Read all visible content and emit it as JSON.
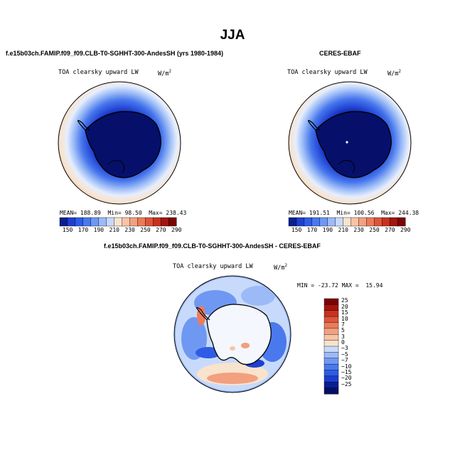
{
  "page": {
    "title": "JJA"
  },
  "panels": {
    "model": {
      "title": "f.e15b03ch.FAMIP.f09_f09.CLB-T0-SGHHT-300-AndesSH (yrs 1980-1984)",
      "variable": "TOA clearsky upward LW",
      "units": "W/m",
      "units_exponent": "2",
      "mean_label": "MEAN=",
      "mean": "188.89",
      "min_label": "Min=",
      "min": "98.50",
      "max_label": "Max=",
      "max": "238.43"
    },
    "obs": {
      "title": "CERES-EBAF",
      "variable": "TOA clearsky upward LW",
      "units": "W/m",
      "units_exponent": "2",
      "mean_label": "MEAN=",
      "mean": "191.51",
      "min_label": "Min=",
      "min": "100.56",
      "max_label": "Max=",
      "max": "244.38"
    },
    "diff": {
      "title": "f.e15b03ch.FAMIP.f09_f09.CLB-T0-SGHHT-300-AndesSH - CERES-EBAF",
      "variable": "TOA clearsky upward LW",
      "units": "W/m",
      "units_exponent": "2",
      "minmax": "MIN = -23.72 MAX =  15.94"
    }
  },
  "colorbars": {
    "abs": {
      "ticks": [
        "150",
        "170",
        "190",
        "210",
        "230",
        "250",
        "270",
        "290"
      ],
      "colors": [
        "#0a1f8f",
        "#1d3fd0",
        "#2f5ce6",
        "#4a79ee",
        "#6f98f3",
        "#9cbaf7",
        "#c8dafb",
        "#f9e3cd",
        "#f7c4a7",
        "#f2a080",
        "#ea7b5b",
        "#dd553b",
        "#c8321f",
        "#a3150e",
        "#7a0404"
      ]
    },
    "diff": {
      "ticks": [
        "25",
        "20",
        "15",
        "10",
        "7",
        "5",
        "3",
        "0",
        "−3",
        "−5",
        "−7",
        "−10",
        "−15",
        "−20",
        "−25"
      ],
      "colors": [
        "#7a0404",
        "#a3150e",
        "#c8321f",
        "#dd553b",
        "#ea7b5b",
        "#f2a080",
        "#f7c4a7",
        "#f9e3cd",
        "#c8dafb",
        "#9cbaf7",
        "#6f98f3",
        "#4a79ee",
        "#2f5ce6",
        "#1d3fd0",
        "#0a1f8f",
        "#050f66"
      ]
    }
  },
  "map_style": {
    "ocean_far": "#f8dcc4",
    "land_colour": "#0a0a6e",
    "coast_colour": "#000000"
  }
}
